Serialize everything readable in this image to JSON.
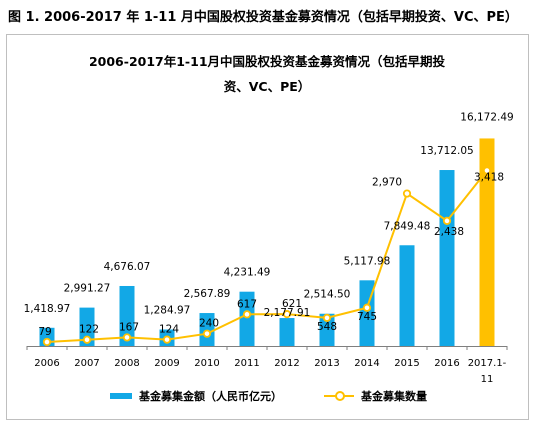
{
  "figure_caption": "图 1. 2006-2017 年 1-11 月中国股权投资基金募资情况（包括早期投资、VC、PE）",
  "chart_data": {
    "type": "bar",
    "title_lines": [
      "2006-2017年1-11月中国股权投资基金募资情况（包括早期投",
      "资、VC、PE）"
    ],
    "categories": [
      "2006",
      "2007",
      "2008",
      "2009",
      "2010",
      "2011",
      "2012",
      "2013",
      "2014",
      "2015",
      "2016",
      "2017.1-11"
    ],
    "category_labels": [
      [
        "2006"
      ],
      [
        "2007"
      ],
      [
        "2008"
      ],
      [
        "2009"
      ],
      [
        "2010"
      ],
      [
        "2011"
      ],
      [
        "2012"
      ],
      [
        "2013"
      ],
      [
        "2014"
      ],
      [
        "2015"
      ],
      [
        "2016"
      ],
      [
        "2017.1-",
        "11"
      ]
    ],
    "series": [
      {
        "name": "基金募集金额（人民币亿元）",
        "type": "bar",
        "values": [
          1418.97,
          2991.27,
          4676.07,
          1284.97,
          2567.89,
          4231.49,
          2177.91,
          2514.5,
          5117.98,
          7849.48,
          13712.05,
          16172.49
        ],
        "labels": [
          "1,418.97",
          "2,991.27",
          "4,676.07",
          "1,284.97",
          "2,567.89",
          "4,231.49",
          "2,177.91",
          "2,514.50",
          "5,117.98",
          "7,849.48",
          "13,712.05",
          "16,172.49"
        ],
        "ylim": [
          0,
          18000
        ]
      },
      {
        "name": "基金募集数量",
        "type": "line",
        "values": [
          79,
          122,
          167,
          124,
          240,
          617,
          621,
          548,
          745,
          2970,
          2438,
          3418
        ],
        "labels": [
          "79",
          "122",
          "167",
          "124",
          "240",
          "617",
          "621",
          "548",
          "745",
          "2,970",
          "2,438",
          "3,418"
        ],
        "ylim": [
          0,
          4500
        ]
      }
    ],
    "legend_position": "bottom",
    "grid": false,
    "colors": {
      "bar": "#12a8e6",
      "bar_highlight": "#ffc000",
      "line": "#ffc000",
      "axis": "#7f7f7f"
    }
  }
}
